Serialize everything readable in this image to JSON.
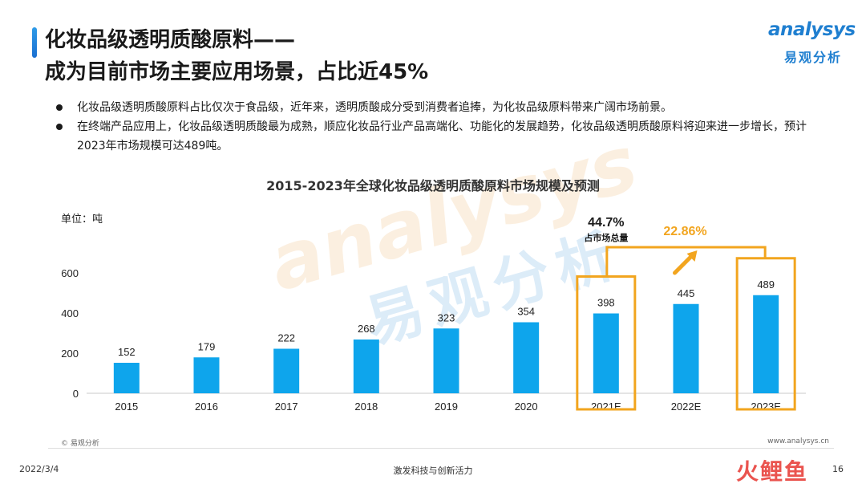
{
  "header": {
    "title_line1": "化妆品级透明质酸原料——",
    "title_line2": "成为目前市场主要应用场景，占比近45%"
  },
  "logo": {
    "en": "analysys",
    "cn": "易观分析"
  },
  "bullets": [
    "化妆品级透明质酸原料占比仅次于食品级，近年来，透明质酸成分受到消费者追捧，为化妆品级原料带来广阔市场前景。",
    "在终端产品应用上，化妆品级透明质酸最为成熟，顺应化妆品行业产品高端化、功能化的发展趋势，化妆品级透明质酸原料将迎来进一步增长，预计2023年市场规模可达489吨。"
  ],
  "watermark": {
    "en": "analysys",
    "cn": "易观分析"
  },
  "chart_data": {
    "type": "bar",
    "title": "2015-2023年全球化妆品级透明质酸原料市场规模及预测",
    "unit_label": "单位：吨",
    "categories": [
      "2015",
      "2016",
      "2017",
      "2018",
      "2019",
      "2020",
      "2021E",
      "2022E",
      "2023E"
    ],
    "values": [
      152,
      179,
      222,
      268,
      323,
      354,
      398,
      445,
      489
    ],
    "ylim": [
      0,
      600
    ],
    "yticks": [
      0,
      200,
      400,
      600
    ],
    "bar_color": "#0ea5ec",
    "highlight_color": "#f2a51f",
    "highlighted_categories": [
      "2021E",
      "2023E"
    ],
    "annotations": {
      "share_value": "44.7%",
      "share_label": "占市场总量",
      "cagr_value": "22.86%"
    },
    "grid": false,
    "legend": "none"
  },
  "footer": {
    "copyright": "© 易观分析",
    "website": "www.analysys.cn",
    "date": "2022/3/4",
    "slogan": "激发科技与创新活力",
    "page": "16",
    "brand2": "火鲤鱼"
  }
}
